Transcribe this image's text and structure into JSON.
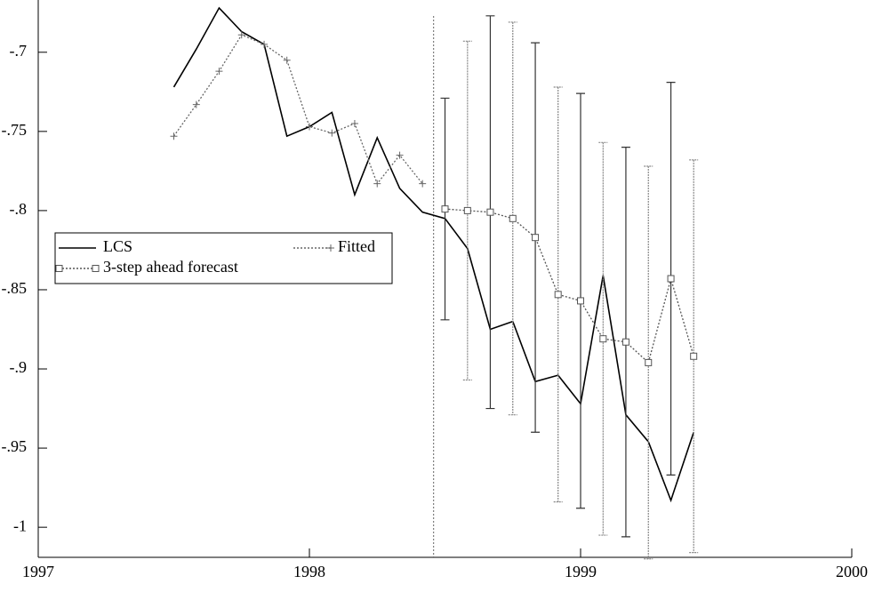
{
  "chart_data": {
    "type": "line",
    "x": [
      1997.5,
      1997.583,
      1997.667,
      1997.75,
      1997.833,
      1997.917,
      1998,
      1998.083,
      1998.167,
      1998.25,
      1998.333,
      1998.417,
      1998.5,
      1998.583,
      1998.667,
      1998.75,
      1998.833,
      1998.917,
      1999,
      1999.083,
      1999.167,
      1999.25,
      1999.333,
      1999.417
    ],
    "series": [
      {
        "name": "LCS",
        "color": "#000000",
        "style": "solid",
        "marker": "none",
        "values": [
          -0.722,
          -0.698,
          -0.672,
          -0.687,
          -0.695,
          -0.753,
          -0.747,
          -0.738,
          -0.79,
          -0.754,
          -0.786,
          -0.801,
          -0.805,
          -0.824,
          -0.875,
          -0.87,
          -0.908,
          -0.904,
          -0.922,
          -0.841,
          -0.929,
          -0.946,
          -0.983,
          -0.94
        ]
      },
      {
        "name": "Fitted",
        "color": "#666666",
        "style": "dotted",
        "marker": "plus",
        "values": [
          -0.753,
          -0.733,
          -0.712,
          -0.689,
          -0.695,
          -0.705,
          -0.747,
          -0.751,
          -0.745,
          -0.783,
          -0.765,
          -0.783,
          null,
          null,
          null,
          null,
          null,
          null,
          null,
          null,
          null,
          null,
          null,
          null
        ]
      },
      {
        "name": "3-step ahead forecast",
        "color": "#555555",
        "style": "dotted",
        "marker": "square",
        "values": [
          null,
          null,
          null,
          null,
          null,
          null,
          null,
          null,
          null,
          null,
          null,
          null,
          -0.799,
          -0.8,
          -0.801,
          -0.805,
          -0.817,
          -0.853,
          -0.857,
          -0.881,
          -0.883,
          -0.896,
          -0.843,
          -0.892
        ],
        "errors": [
          null,
          null,
          null,
          null,
          null,
          null,
          null,
          null,
          null,
          null,
          null,
          null,
          0.07,
          0.107,
          0.124,
          0.124,
          0.123,
          0.131,
          0.131,
          0.124,
          0.123,
          0.124,
          0.124,
          0.124
        ]
      }
    ],
    "forecast_start": 1998.458,
    "xlim": [
      1997,
      2000
    ],
    "xticks": [
      1997,
      1998,
      1999,
      2000
    ],
    "ylim": [
      -1.019,
      -0.667
    ],
    "yticks": [
      {
        "value": -0.7,
        "label": "-.7"
      },
      {
        "value": -0.75,
        "label": "-.75"
      },
      {
        "value": -0.8,
        "label": "-.8"
      },
      {
        "value": -0.85,
        "label": "-.85"
      },
      {
        "value": -0.9,
        "label": "-.9"
      },
      {
        "value": -0.95,
        "label": "-.95"
      },
      -1
    ],
    "grid": false
  }
}
